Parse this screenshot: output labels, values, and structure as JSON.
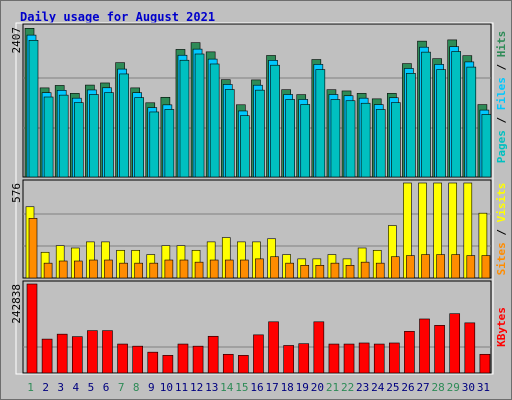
{
  "title": "Daily usage for August 2021",
  "colors": {
    "background": "#c0c0c0",
    "title": "#0000cc",
    "pages": "#00c0c0",
    "files": "#00c8ff",
    "hits": "#2e8b57",
    "visits": "#ffff00",
    "sites": "#ff8c00",
    "kbytes": "#ff0000",
    "weekend_label": "#2e8b57",
    "weekday_label": "#00007f"
  },
  "chart_data": [
    {
      "type": "bar",
      "name": "hits-files-pages",
      "ymax_label": "2407",
      "ylim": [
        0,
        2407
      ],
      "legend": [
        {
          "name": "Pages",
          "color_key": "pages"
        },
        {
          "name": "Files",
          "color_key": "files"
        },
        {
          "name": "Hits",
          "color_key": "hits"
        }
      ],
      "categories": [
        "1",
        "2",
        "3",
        "4",
        "5",
        "6",
        "7",
        "8",
        "9",
        "10",
        "11",
        "12",
        "13",
        "14",
        "15",
        "16",
        "17",
        "18",
        "19",
        "20",
        "21",
        "22",
        "23",
        "24",
        "25",
        "26",
        "27",
        "28",
        "29",
        "30",
        "31"
      ],
      "weekend_days": [
        1,
        7,
        8,
        14,
        15,
        21,
        22,
        28,
        29
      ],
      "series": [
        {
          "name": "Hits",
          "values": [
            2386,
            1430,
            1469,
            1342,
            1475,
            1509,
            1835,
            1430,
            1191,
            1279,
            2047,
            2156,
            2008,
            1562,
            1159,
            1558,
            1950,
            1401,
            1322,
            1885,
            1401,
            1381,
            1342,
            1254,
            1342,
            1820,
            2180,
            1899,
            2200,
            1947,
            1162
          ]
        },
        {
          "name": "Files",
          "values": [
            2325,
            1401,
            1439,
            1313,
            1445,
            1480,
            1780,
            1401,
            1162,
            1206,
            2002,
            2100,
            1940,
            1533,
            1108,
            1521,
            1920,
            1372,
            1293,
            1855,
            1372,
            1352,
            1313,
            1210,
            1320,
            1790,
            2131,
            1855,
            2140,
            1895,
            1122
          ]
        },
        {
          "name": "Pages",
          "values": [
            2290,
            1380,
            1410,
            1290,
            1420,
            1450,
            1750,
            1370,
            1140,
            1180,
            1970,
            2070,
            1910,
            1500,
            1080,
            1490,
            1890,
            1340,
            1260,
            1820,
            1340,
            1320,
            1280,
            1180,
            1290,
            1760,
            2100,
            1820,
            2110,
            1860,
            1100
          ]
        }
      ]
    },
    {
      "type": "bar",
      "name": "visits-sites",
      "ymax_label": "576",
      "ylim": [
        0,
        576
      ],
      "legend": [
        {
          "name": "Sites",
          "color_key": "sites"
        },
        {
          "name": "Visits",
          "color_key": "visits"
        }
      ],
      "categories": [
        "1",
        "2",
        "3",
        "4",
        "5",
        "6",
        "7",
        "8",
        "9",
        "10",
        "11",
        "12",
        "13",
        "14",
        "15",
        "16",
        "17",
        "18",
        "19",
        "20",
        "21",
        "22",
        "23",
        "24",
        "25",
        "26",
        "27",
        "28",
        "29",
        "30",
        "31"
      ],
      "series": [
        {
          "name": "Visits",
          "values": [
            432,
            156,
            196,
            182,
            219,
            219,
            168,
            168,
            142,
            196,
            196,
            168,
            219,
            245,
            219,
            219,
            238,
            142,
            116,
            116,
            142,
            116,
            182,
            168,
            318,
            576,
            576,
            576,
            576,
            576,
            393
          ]
        },
        {
          "name": "Sites",
          "values": [
            362,
            90,
            103,
            103,
            109,
            109,
            90,
            90,
            90,
            109,
            109,
            96,
            109,
            109,
            109,
            116,
            129,
            90,
            77,
            77,
            90,
            77,
            96,
            90,
            129,
            136,
            142,
            142,
            142,
            136,
            136
          ]
        }
      ]
    },
    {
      "type": "bar",
      "name": "kbytes",
      "ymax_label": "242838",
      "ylim": [
        0,
        242838
      ],
      "legend": [
        {
          "name": "KBytes",
          "color_key": "kbytes"
        }
      ],
      "categories": [
        "1",
        "2",
        "3",
        "4",
        "5",
        "6",
        "7",
        "8",
        "9",
        "10",
        "11",
        "12",
        "13",
        "14",
        "15",
        "16",
        "17",
        "18",
        "19",
        "20",
        "21",
        "22",
        "23",
        "24",
        "25",
        "26",
        "27",
        "28",
        "29",
        "30",
        "31"
      ],
      "series": [
        {
          "name": "KBytes",
          "values": [
            242838,
            92494,
            105983,
            99239,
            115619,
            115619,
            78996,
            73216,
            56836,
            48165,
            78996,
            73216,
            100202,
            51056,
            48165,
            104056,
            139700,
            75143,
            79959,
            139700,
            78996,
            78996,
            81886,
            78996,
            81886,
            113691,
            147409,
            130066,
            161862,
            136810,
            51056
          ]
        }
      ]
    }
  ]
}
